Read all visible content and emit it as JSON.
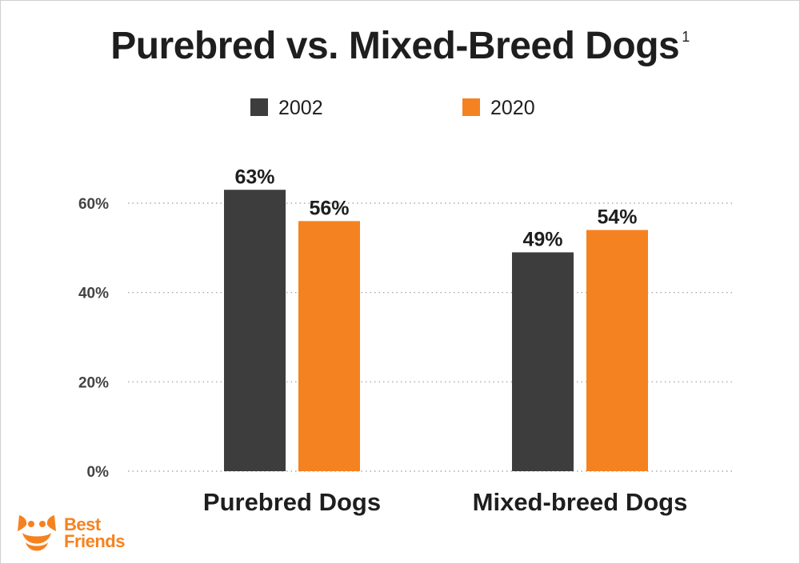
{
  "title": {
    "text": "Purebred vs. Mixed-Breed Dogs",
    "footnote": "1"
  },
  "colors": {
    "series_2002": "#3d3d3d",
    "series_2020": "#f58220",
    "brand": "#f58220"
  },
  "logo": {
    "line1": "Best",
    "line2": "Friends",
    "icon": "dog-smile-icon"
  },
  "chart_data": {
    "type": "bar",
    "title": "Purebred vs. Mixed-Breed Dogs",
    "categories": [
      "Purebred Dogs",
      "Mixed-breed Dogs"
    ],
    "series": [
      {
        "name": "2002",
        "values": [
          63,
          49
        ],
        "labels": [
          "63%",
          "49%"
        ]
      },
      {
        "name": "2020",
        "values": [
          56,
          54
        ],
        "labels": [
          "56%",
          "54%"
        ]
      }
    ],
    "yticks": [
      0,
      20,
      40,
      60
    ],
    "ytick_labels": [
      "0%",
      "20%",
      "40%",
      "60%"
    ],
    "ylim": [
      0,
      60
    ],
    "grid": "dotted horizontal",
    "legend_position": "top-center",
    "xlabel": "",
    "ylabel": ""
  }
}
